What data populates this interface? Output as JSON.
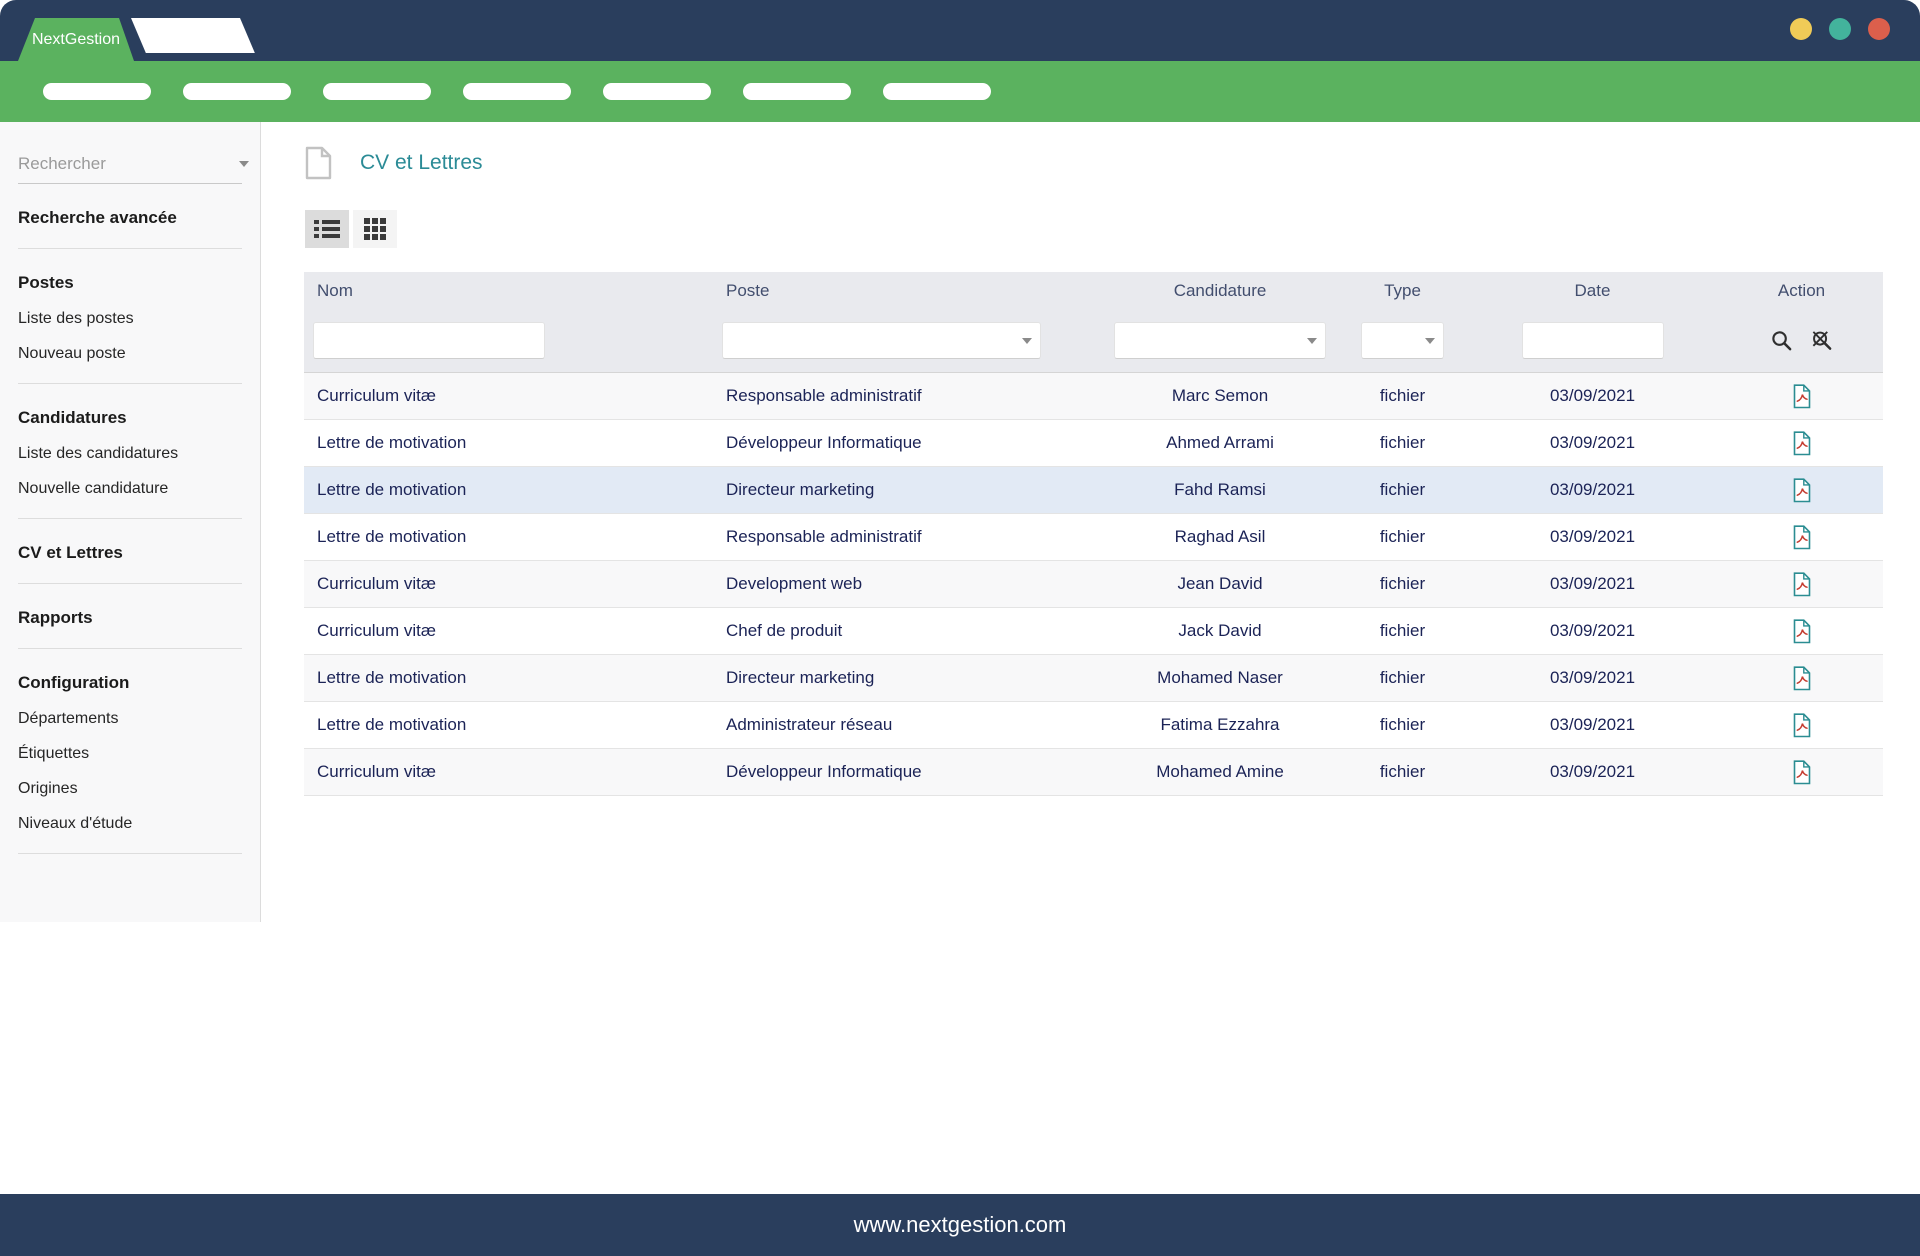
{
  "window": {
    "brand": "NextGestion",
    "footer_url": "www.nextgestion.com"
  },
  "navbar": {
    "placeholder_links_count": 7
  },
  "sidebar": {
    "search_placeholder": "Rechercher",
    "sections": [
      {
        "heading": "Recherche avancée",
        "items": []
      },
      {
        "heading": "Postes",
        "items": [
          "Liste des postes",
          "Nouveau poste"
        ]
      },
      {
        "heading": "Candidatures",
        "items": [
          "Liste des candidatures",
          "Nouvelle candidature"
        ]
      },
      {
        "heading": "CV et Lettres",
        "items": []
      },
      {
        "heading": "Rapports",
        "items": []
      },
      {
        "heading": "Configuration",
        "items": [
          "Départements",
          "Étiquettes",
          "Origines",
          "Niveaux d'étude"
        ]
      }
    ]
  },
  "page": {
    "title": "CV et Lettres"
  },
  "table": {
    "columns": [
      {
        "label": "Nom",
        "filter": "input"
      },
      {
        "label": "Poste",
        "filter": "select"
      },
      {
        "label": "Candidature",
        "filter": "select"
      },
      {
        "label": "Type",
        "filter": "select"
      },
      {
        "label": "Date",
        "filter": "input"
      },
      {
        "label": "Action",
        "filter": "icons"
      }
    ],
    "rows": [
      {
        "nom": "Curriculum vitæ",
        "poste": "Responsable administratif",
        "candidature": "Marc Semon",
        "type": "fichier",
        "date": "03/09/2021",
        "selected": false
      },
      {
        "nom": "Lettre de motivation",
        "poste": "Développeur Informatique",
        "candidature": "Ahmed Arrami",
        "type": "fichier",
        "date": "03/09/2021",
        "selected": false
      },
      {
        "nom": "Lettre de motivation",
        "poste": "Directeur marketing",
        "candidature": "Fahd Ramsi",
        "type": "fichier",
        "date": "03/09/2021",
        "selected": true
      },
      {
        "nom": "Lettre de motivation",
        "poste": "Responsable administratif",
        "candidature": "Raghad Asil",
        "type": "fichier",
        "date": "03/09/2021",
        "selected": false
      },
      {
        "nom": "Curriculum vitæ",
        "poste": "Development web",
        "candidature": "Jean David",
        "type": "fichier",
        "date": "03/09/2021",
        "selected": false
      },
      {
        "nom": "Curriculum vitæ",
        "poste": "Chef de produit",
        "candidature": "Jack David",
        "type": "fichier",
        "date": "03/09/2021",
        "selected": false
      },
      {
        "nom": "Lettre de motivation",
        "poste": "Directeur marketing",
        "candidature": "Mohamed Naser",
        "type": "fichier",
        "date": "03/09/2021",
        "selected": false
      },
      {
        "nom": "Lettre de motivation",
        "poste": "Administrateur réseau",
        "candidature": "Fatima Ezzahra",
        "type": "fichier",
        "date": "03/09/2021",
        "selected": false
      },
      {
        "nom": "Curriculum vitæ",
        "poste": "Développeur Informatique",
        "candidature": "Mohamed Amine",
        "type": "fichier",
        "date": "03/09/2021",
        "selected": false
      }
    ]
  },
  "icons": {
    "page_title": "document-icon",
    "view_list": "list-view-icon",
    "view_grid": "grid-view-icon",
    "filter_search": "search-icon",
    "filter_clear": "clear-search-icon",
    "row_action": "pdf-file-icon",
    "select_arrow": "chevron-down-icon"
  },
  "colors": {
    "navy": "#2a3e5d",
    "green": "#5bb25f",
    "title-teal": "#2b8b96",
    "header-bg": "#e9eaee",
    "header-text": "#424e6e",
    "cell-text": "#1b2356",
    "selected-row": "#e2eaf5",
    "stripe-row": "#f8f8f9",
    "sidebar-bg": "#f8f8f9",
    "pdf-teal": "#2b8d92",
    "pdf-red": "#c43d31",
    "traffic-yellow": "#f0cb57",
    "traffic-teal": "#43b39c",
    "traffic-red": "#dc5f4c"
  }
}
